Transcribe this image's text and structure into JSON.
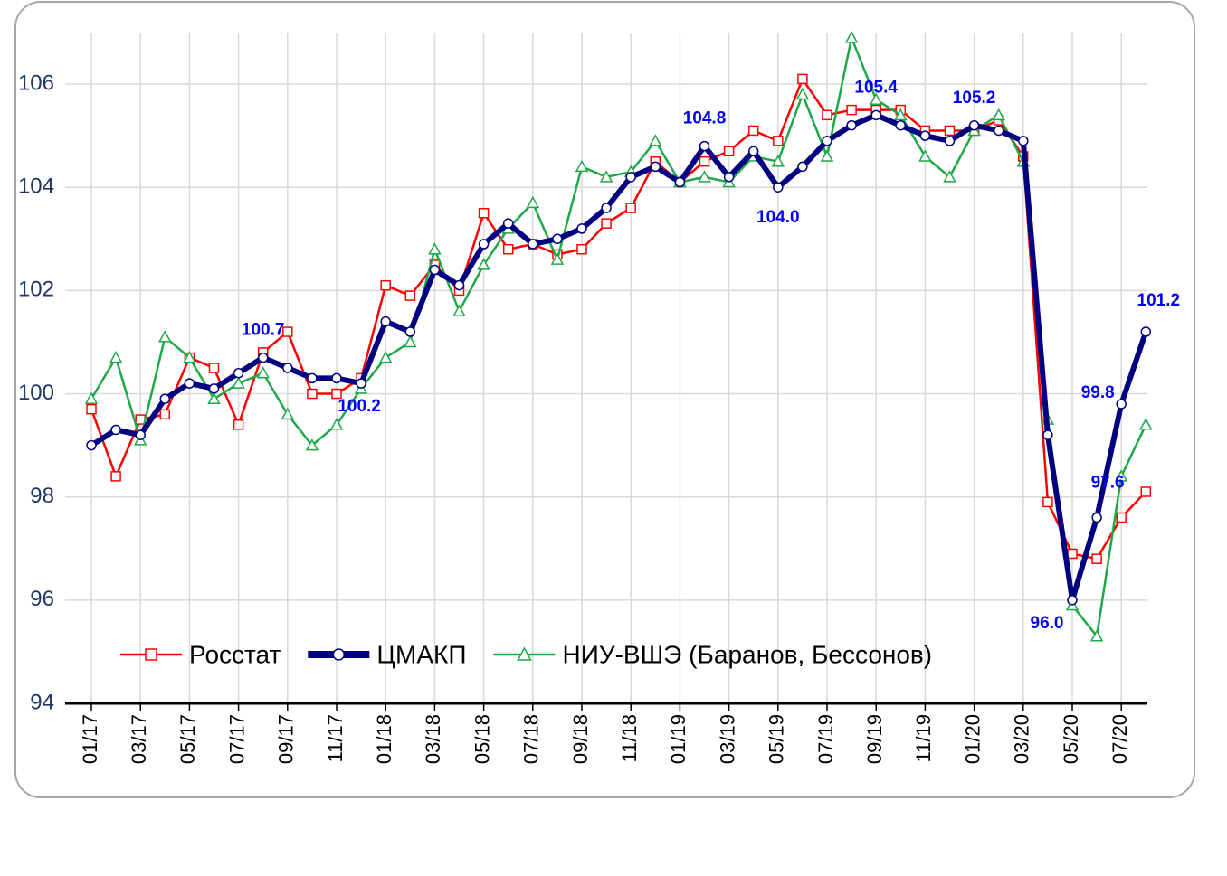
{
  "chart_data": {
    "type": "line",
    "categories": [
      "01/17",
      null,
      "03/17",
      null,
      "05/17",
      null,
      "07/17",
      null,
      "09/17",
      null,
      "11/17",
      null,
      "01/18",
      null,
      "03/18",
      null,
      "05/18",
      null,
      "07/18",
      null,
      "09/18",
      null,
      "11/18",
      null,
      "01/19",
      null,
      "03/19",
      null,
      "05/19",
      null,
      "07/19",
      null,
      "09/19",
      null,
      "11/19",
      null,
      "01/20",
      null,
      "03/20",
      null,
      "05/20",
      null,
      "07/20",
      null
    ],
    "series": [
      {
        "name": "Росстат",
        "color": "#ff0000",
        "marker": "square",
        "values": [
          99.7,
          98.4,
          99.5,
          99.6,
          100.7,
          100.5,
          99.4,
          100.8,
          101.2,
          100.0,
          100.0,
          100.3,
          102.1,
          101.9,
          102.5,
          102.0,
          103.5,
          102.8,
          102.9,
          102.7,
          102.8,
          103.3,
          103.6,
          104.5,
          104.1,
          104.5,
          104.7,
          105.1,
          104.9,
          106.1,
          105.4,
          105.5,
          105.5,
          105.5,
          105.1,
          105.1,
          105.1,
          105.3,
          104.6,
          97.9,
          96.9,
          96.8,
          97.6,
          98.1
        ]
      },
      {
        "name": "ЦМАКП",
        "color": "#000080",
        "marker": "circle",
        "values": [
          99.0,
          99.3,
          99.2,
          99.9,
          100.2,
          100.1,
          100.4,
          100.7,
          100.5,
          100.3,
          100.3,
          100.2,
          101.4,
          101.2,
          102.4,
          102.1,
          102.9,
          103.3,
          102.9,
          103.0,
          103.2,
          103.6,
          104.2,
          104.4,
          104.1,
          104.8,
          104.2,
          104.7,
          104,
          104.4,
          104.9,
          105.2,
          105.4,
          105.2,
          105.0,
          104.9,
          105.2,
          105.1,
          104.9,
          99.2,
          96,
          97.6,
          99.8,
          101.2
        ],
        "value_labels": [
          null,
          null,
          null,
          null,
          null,
          null,
          null,
          "100.7",
          null,
          null,
          null,
          "100.2",
          null,
          null,
          null,
          null,
          null,
          null,
          null,
          null,
          null,
          null,
          null,
          null,
          null,
          "104.8",
          null,
          null,
          "104.0",
          null,
          null,
          null,
          "105.4",
          null,
          null,
          null,
          "105.2",
          null,
          null,
          null,
          "96.0",
          "97.6",
          "99.8",
          "101.2"
        ]
      },
      {
        "name": "НИУ-ВШЭ (Баранов, Бессонов)",
        "color": "#1ea848",
        "marker": "triangle",
        "values": [
          99.9,
          100.7,
          99.1,
          101.1,
          100.7,
          99.9,
          100.2,
          100.4,
          99.6,
          99.0,
          99.4,
          100.1,
          100.7,
          101.0,
          102.8,
          101.6,
          102.5,
          103.2,
          103.7,
          102.6,
          104.4,
          104.2,
          104.3,
          104.9,
          104.1,
          104.2,
          104.1,
          104.6,
          104.5,
          105.8,
          104.6,
          106.9,
          105.7,
          105.4,
          104.6,
          104.2,
          105.1,
          105.4,
          104.5,
          99.5,
          95.9,
          95.3,
          98.4,
          99.4
        ]
      }
    ],
    "ylim": [
      94,
      107
    ],
    "yticks": [
      94,
      96,
      98,
      100,
      102,
      104,
      106
    ],
    "grid": true,
    "legend": "lower center"
  }
}
